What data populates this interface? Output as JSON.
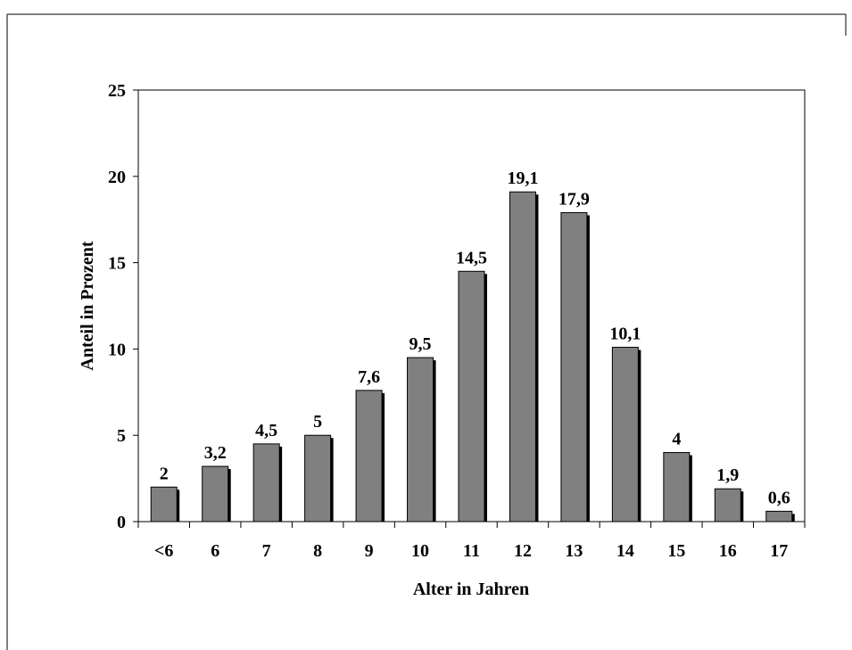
{
  "chart_data": {
    "type": "bar",
    "title": "",
    "xlabel": "Alter in Jahren",
    "ylabel": "Anteil in Prozent",
    "categories": [
      "<6",
      "6",
      "7",
      "8",
      "9",
      "10",
      "11",
      "12",
      "13",
      "14",
      "15",
      "16",
      "17"
    ],
    "values": [
      2,
      3.2,
      4.5,
      5,
      7.6,
      9.5,
      14.5,
      19.1,
      17.9,
      10.1,
      4,
      1.9,
      0.6
    ],
    "data_labels": [
      "2",
      "3,2",
      "4,5",
      "5",
      "7,6",
      "9,5",
      "14,5",
      "19,1",
      "17,9",
      "10,1",
      "4",
      "1,9",
      "0,6"
    ],
    "yticks": [
      "0",
      "5",
      "10",
      "15",
      "20",
      "25"
    ],
    "ylim": [
      0,
      25
    ],
    "grid": false,
    "legend": "none",
    "colors": {
      "bar": "#808080",
      "bar_shadow": "#000000"
    }
  }
}
